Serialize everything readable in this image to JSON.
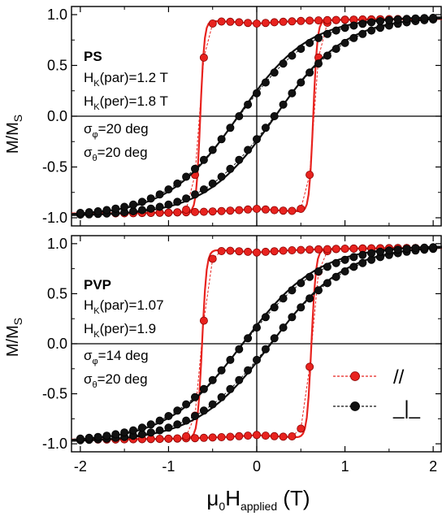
{
  "chart_data": [
    {
      "type": "scatter",
      "panel": "top",
      "xlim": [
        -2.1,
        2.1
      ],
      "ylim": [
        -1.08,
        1.08
      ],
      "xticks": [
        -2,
        -1,
        0,
        1,
        2
      ],
      "yticks": [
        -1.0,
        -0.5,
        0.0,
        0.5,
        1.0
      ],
      "ytick_labels": [
        "-1.0",
        "-0.5",
        "0.0",
        "0.5",
        "1.0"
      ],
      "ylabel": {
        "main": "M/M",
        "sub": "S"
      },
      "sample": "PS",
      "annotations": [
        {
          "main": "H",
          "sub": "K",
          "rest": "(par)=1.2 T"
        },
        {
          "main": "H",
          "sub": "K",
          "rest": "(per)=1.8 T"
        },
        {
          "main": "σ",
          "sub": "φ",
          "rest": "=20 deg"
        },
        {
          "main": "σ",
          "sub": "θ",
          "rest": "=20 deg"
        }
      ],
      "series": [
        {
          "color": "#e8231f",
          "kind": "parallel",
          "Hc": 0.65,
          "width": 0.07,
          "sat": 0.24,
          "fit_Hc": 0.64,
          "fit_width": 0.045,
          "fit_sat": 0.2
        },
        {
          "color": "#111111",
          "kind": "perpendicular",
          "Hc": 0.4,
          "width": 0.85,
          "fit_Hc": 0.42,
          "fit_width": 0.8
        }
      ]
    },
    {
      "type": "scatter",
      "panel": "bottom",
      "xlim": [
        -2.1,
        2.1
      ],
      "ylim": [
        -1.08,
        1.08
      ],
      "xticks": [
        -2,
        -1,
        0,
        1,
        2
      ],
      "xtick_labels": [
        "-2",
        "-1",
        "0",
        "1",
        "2"
      ],
      "yticks": [
        -1.0,
        -0.5,
        0.0,
        0.5,
        1.0
      ],
      "ytick_labels": [
        "-1.0",
        "-0.5",
        "0.0",
        "0.5",
        "1.0"
      ],
      "ylabel": {
        "main": "M/M",
        "sub": "S"
      },
      "xlabel": {
        "pre": "μ",
        "pre_sub": "0",
        "main": "H",
        "sub": "applied",
        "rest": " (T)"
      },
      "sample": "PVP",
      "annotations": [
        {
          "main": "H",
          "sub": "K",
          "rest": "(par)=1.07"
        },
        {
          "main": "H",
          "sub": "K",
          "rest": "(per)=1.9"
        },
        {
          "main": "σ",
          "sub": "φ",
          "rest": "=14 deg"
        },
        {
          "main": "σ",
          "sub": "θ",
          "rest": "=20 deg"
        }
      ],
      "legend": {
        "position": "lower-right",
        "entries": [
          {
            "label": "//",
            "color": "#e8231f"
          },
          {
            "label": "_|_",
            "color": "#111111"
          }
        ]
      },
      "series": [
        {
          "color": "#e8231f",
          "kind": "parallel",
          "Hc": 0.62,
          "width": 0.08,
          "sat": 0.22,
          "fit_Hc": 0.62,
          "fit_width": 0.05,
          "fit_sat": 0.2
        },
        {
          "color": "#111111",
          "kind": "perpendicular",
          "Hc": 0.3,
          "width": 0.9,
          "fit_Hc": 0.32,
          "fit_width": 0.85
        }
      ]
    }
  ]
}
